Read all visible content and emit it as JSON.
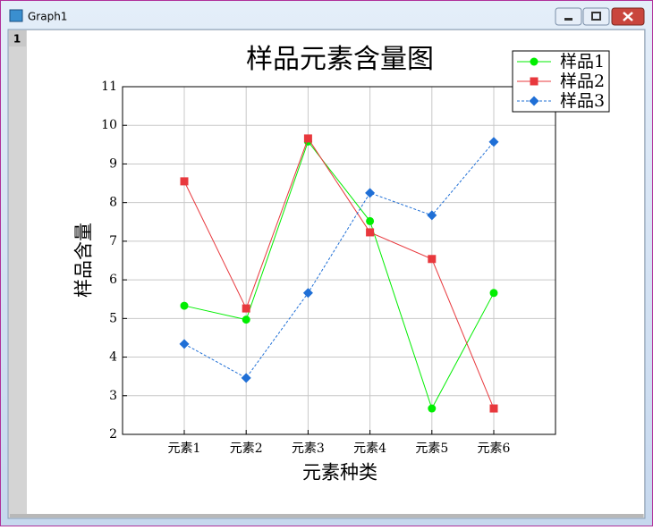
{
  "window": {
    "title": "Graph1",
    "layer": "1"
  },
  "chart_data": {
    "type": "line",
    "title": "样品元素含量图",
    "x_label": "元素种类",
    "y_label": "样品含量",
    "categories": [
      "元素1",
      "元素2",
      "元素3",
      "元素4",
      "元素5",
      "元素6"
    ],
    "series": [
      {
        "name": "样品1",
        "color": "#00ee00",
        "marker": "circle",
        "line_style": "solid",
        "values": [
          5.33,
          4.97,
          9.58,
          7.52,
          2.67,
          5.66
        ]
      },
      {
        "name": "样品2",
        "color": "#e8383d",
        "marker": "square",
        "line_style": "solid",
        "values": [
          8.55,
          5.26,
          9.66,
          7.23,
          6.54,
          2.67
        ]
      },
      {
        "name": "样品3",
        "color": "#1f6fd6",
        "marker": "diamond",
        "line_style": "dashed",
        "values": [
          4.34,
          3.46,
          5.66,
          8.25,
          7.67,
          9.57
        ]
      }
    ],
    "ylim": [
      2,
      11
    ],
    "yticks": [
      2,
      3,
      4,
      5,
      6,
      7,
      8,
      9,
      10,
      11
    ],
    "grid": true,
    "legend": "upper right"
  }
}
